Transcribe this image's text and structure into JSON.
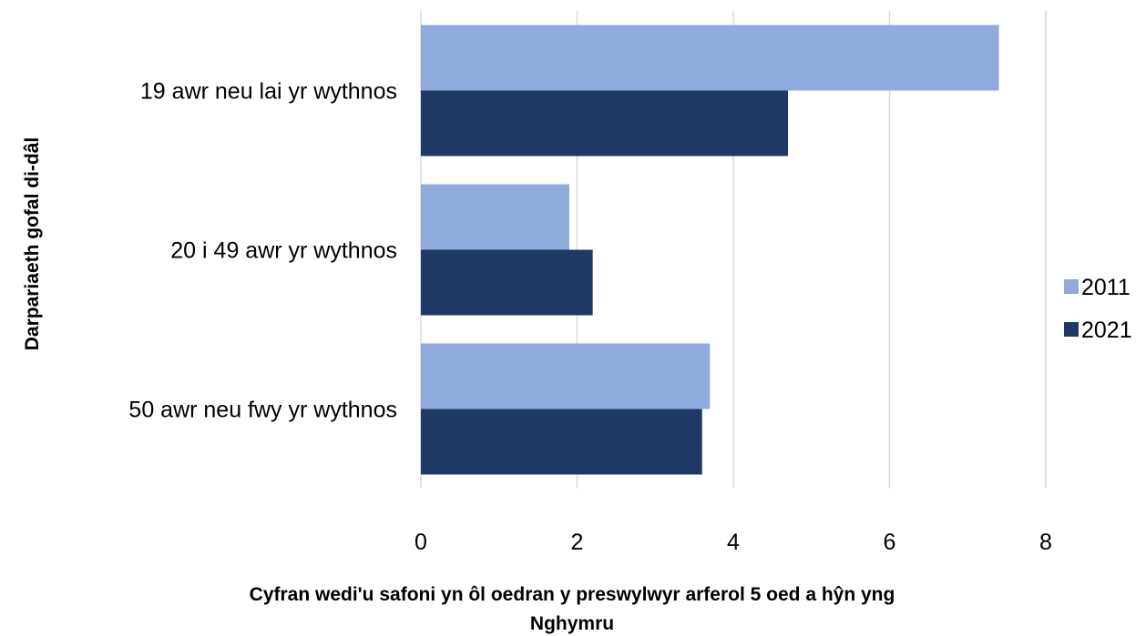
{
  "chart_data": {
    "type": "bar",
    "orientation": "horizontal",
    "categories": [
      "19 awr neu lai yr wythnos",
      "20 i 49 awr yr wythnos",
      "50 awr neu fwy yr wythnos"
    ],
    "series": [
      {
        "name": "2011",
        "values": [
          7.4,
          1.9,
          3.7
        ],
        "color": "#8faadc"
      },
      {
        "name": "2021",
        "values": [
          4.7,
          2.2,
          3.6
        ],
        "color": "#203864"
      }
    ],
    "xlim": [
      0,
      8
    ],
    "xticks": [
      0,
      2,
      4,
      6,
      8
    ],
    "xlabel_lines": [
      "Cyfran wedi'u safoni yn ôl oedran y preswylwyr arferol 5 oed a hŷn yng",
      "Nghymru"
    ],
    "ylabel": "Darpariaeth gofal di-dâl",
    "grid": "vertical",
    "gridline_color": "#d9d9d9",
    "legend": "right"
  }
}
